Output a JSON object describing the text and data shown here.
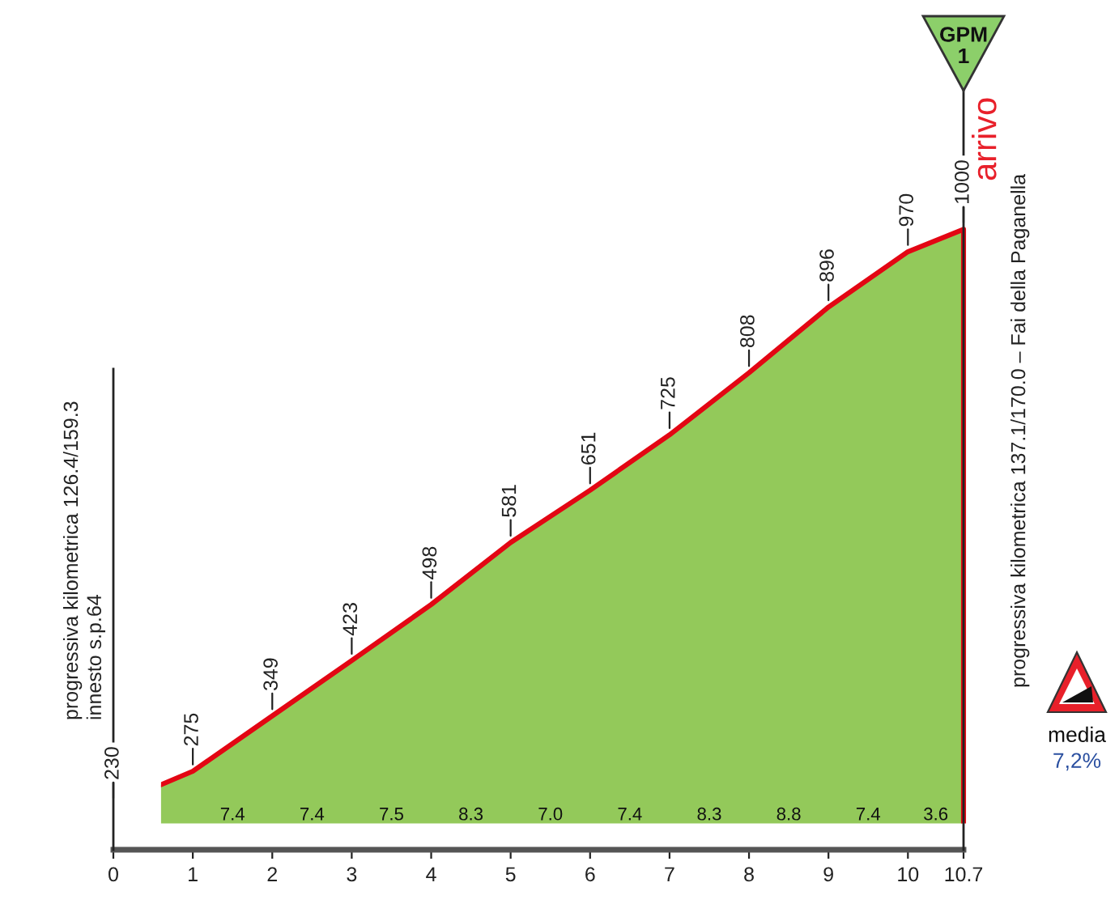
{
  "chart_data": {
    "type": "area",
    "x": [
      0,
      1,
      2,
      3,
      4,
      5,
      6,
      7,
      8,
      9,
      10,
      10.7
    ],
    "xlim": [
      0,
      10.7
    ],
    "xticks": [
      0,
      1,
      2,
      3,
      4,
      5,
      6,
      7,
      8,
      9,
      10,
      10.7
    ],
    "tick_labels": "x",
    "series": [
      {
        "color": "#93c95a",
        "values": [
          230,
          275,
          349,
          423,
          498,
          581,
          651,
          725,
          808,
          896,
          970,
          1000
        ]
      }
    ],
    "data_labels": true,
    "ref_lines": [
      {
        "axis": "x",
        "value": 0,
        "label": "progressiva kilometrica 126.4/159.3\ninnesto s.p.64"
      },
      {
        "axis": "x",
        "value": 10.7,
        "label": "progressiva kilometrica 137.1/170.0 – Fai della Paganella"
      }
    ],
    "annotations": [
      "7.4",
      "7.4",
      "7.5",
      "8.3",
      "7.0",
      "7.4",
      "8.3",
      "8.8",
      "7.4",
      "3.6",
      "arrivo",
      "GPM\n1",
      "media",
      "7,2%"
    ]
  }
}
